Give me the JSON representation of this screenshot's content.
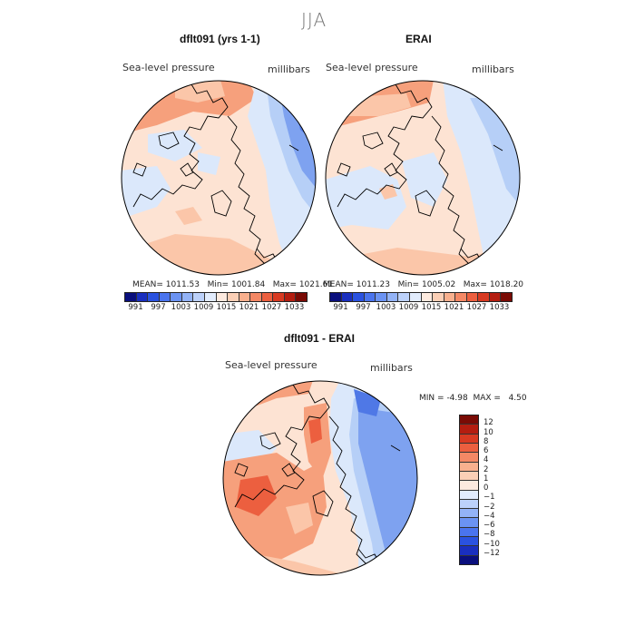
{
  "figure": {
    "season": "JJA"
  },
  "panels": [
    {
      "title": "dflt091 (yrs 1-1)",
      "variable": "Sea-level pressure",
      "units": "millibars",
      "stats": {
        "mean_label": "MEAN=",
        "mean": "1011.53",
        "min_label": "Min=",
        "min": "1001.84",
        "max_label": "Max=",
        "max": "1021.61"
      }
    },
    {
      "title": "ERAI",
      "variable": "Sea-level pressure",
      "units": "millibars",
      "stats": {
        "mean_label": "MEAN=",
        "mean": "1011.23",
        "min_label": "Min=",
        "min": "1005.02",
        "max_label": "Max=",
        "max": "1018.20"
      }
    },
    {
      "title": "dflt091 - ERAI",
      "variable": "Sea-level pressure",
      "units": "millibars",
      "stats": {
        "min_label": "MIN =",
        "min": "-4.98",
        "max_label": "MAX =",
        "max": "4.50"
      }
    }
  ],
  "colorbar_abs": {
    "ticks": [
      "991",
      "997",
      "1003",
      "1009",
      "1015",
      "1021",
      "1027",
      "1033"
    ],
    "colors": [
      "#0a0f7d",
      "#1a2fbf",
      "#2a52e0",
      "#4a74ee",
      "#6b93f3",
      "#93b3f7",
      "#bcd1fa",
      "#e2ecfd",
      "#fdeadf",
      "#fbcfb6",
      "#f9b08e",
      "#f48865",
      "#ec5f3f",
      "#d83a22",
      "#b41d10",
      "#7a0b05"
    ]
  },
  "colorbar_diff": {
    "ticks": [
      "12",
      "10",
      "8",
      "6",
      "4",
      "2",
      "1",
      "0",
      "−1",
      "−2",
      "−4",
      "−6",
      "−8",
      "−10",
      "−12"
    ],
    "colors": [
      "#7a0b05",
      "#b41d10",
      "#d83a22",
      "#ec5f3f",
      "#f48865",
      "#f9b08e",
      "#fbcfb6",
      "#fdeadf",
      "#e2ecfd",
      "#bcd1fa",
      "#93b3f7",
      "#6b93f3",
      "#4a74ee",
      "#2a52e0",
      "#1a2fbf",
      "#0a0f7d"
    ]
  },
  "map_colors": {
    "high1": "#fde3d3",
    "high2": "#fbc6a9",
    "high3": "#f6a07c",
    "low1": "#dbe8fb",
    "low2": "#b6cff7",
    "low3": "#7ea2f0",
    "low4": "#4f78e6"
  }
}
